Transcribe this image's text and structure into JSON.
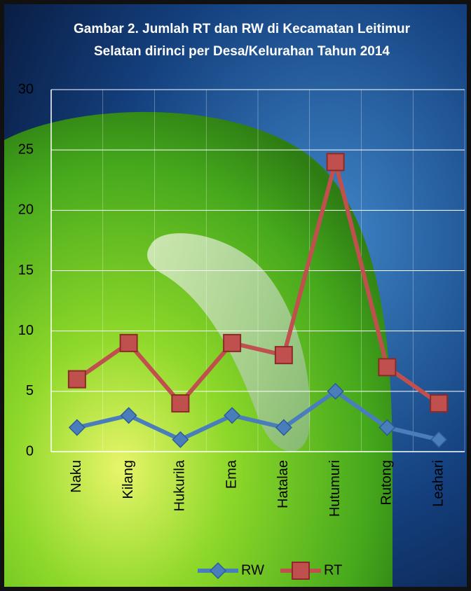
{
  "chart_data": {
    "type": "line",
    "title": "Gambar 2. Jumlah RT dan RW di Kecamatan Leitimur Selatan dirinci per Desa/Kelurahan Tahun 2014",
    "categories": [
      "Naku",
      "Kilang",
      "Hukurila",
      "Ema",
      "Hatalae",
      "Hutumuri",
      "Rutong",
      "Leahari"
    ],
    "series": [
      {
        "name": "RW",
        "color": "#4a7ebb",
        "marker": "diamond",
        "values": [
          2,
          3,
          1,
          3,
          2,
          5,
          2,
          1
        ]
      },
      {
        "name": "RT",
        "color": "#c0504d",
        "marker": "square",
        "values": [
          6,
          9,
          4,
          9,
          8,
          24,
          7,
          4
        ]
      }
    ],
    "ylim": [
      0,
      30
    ],
    "yticks": [
      0,
      5,
      10,
      15,
      20,
      25,
      30
    ],
    "grid": true,
    "legend": "bottom"
  }
}
